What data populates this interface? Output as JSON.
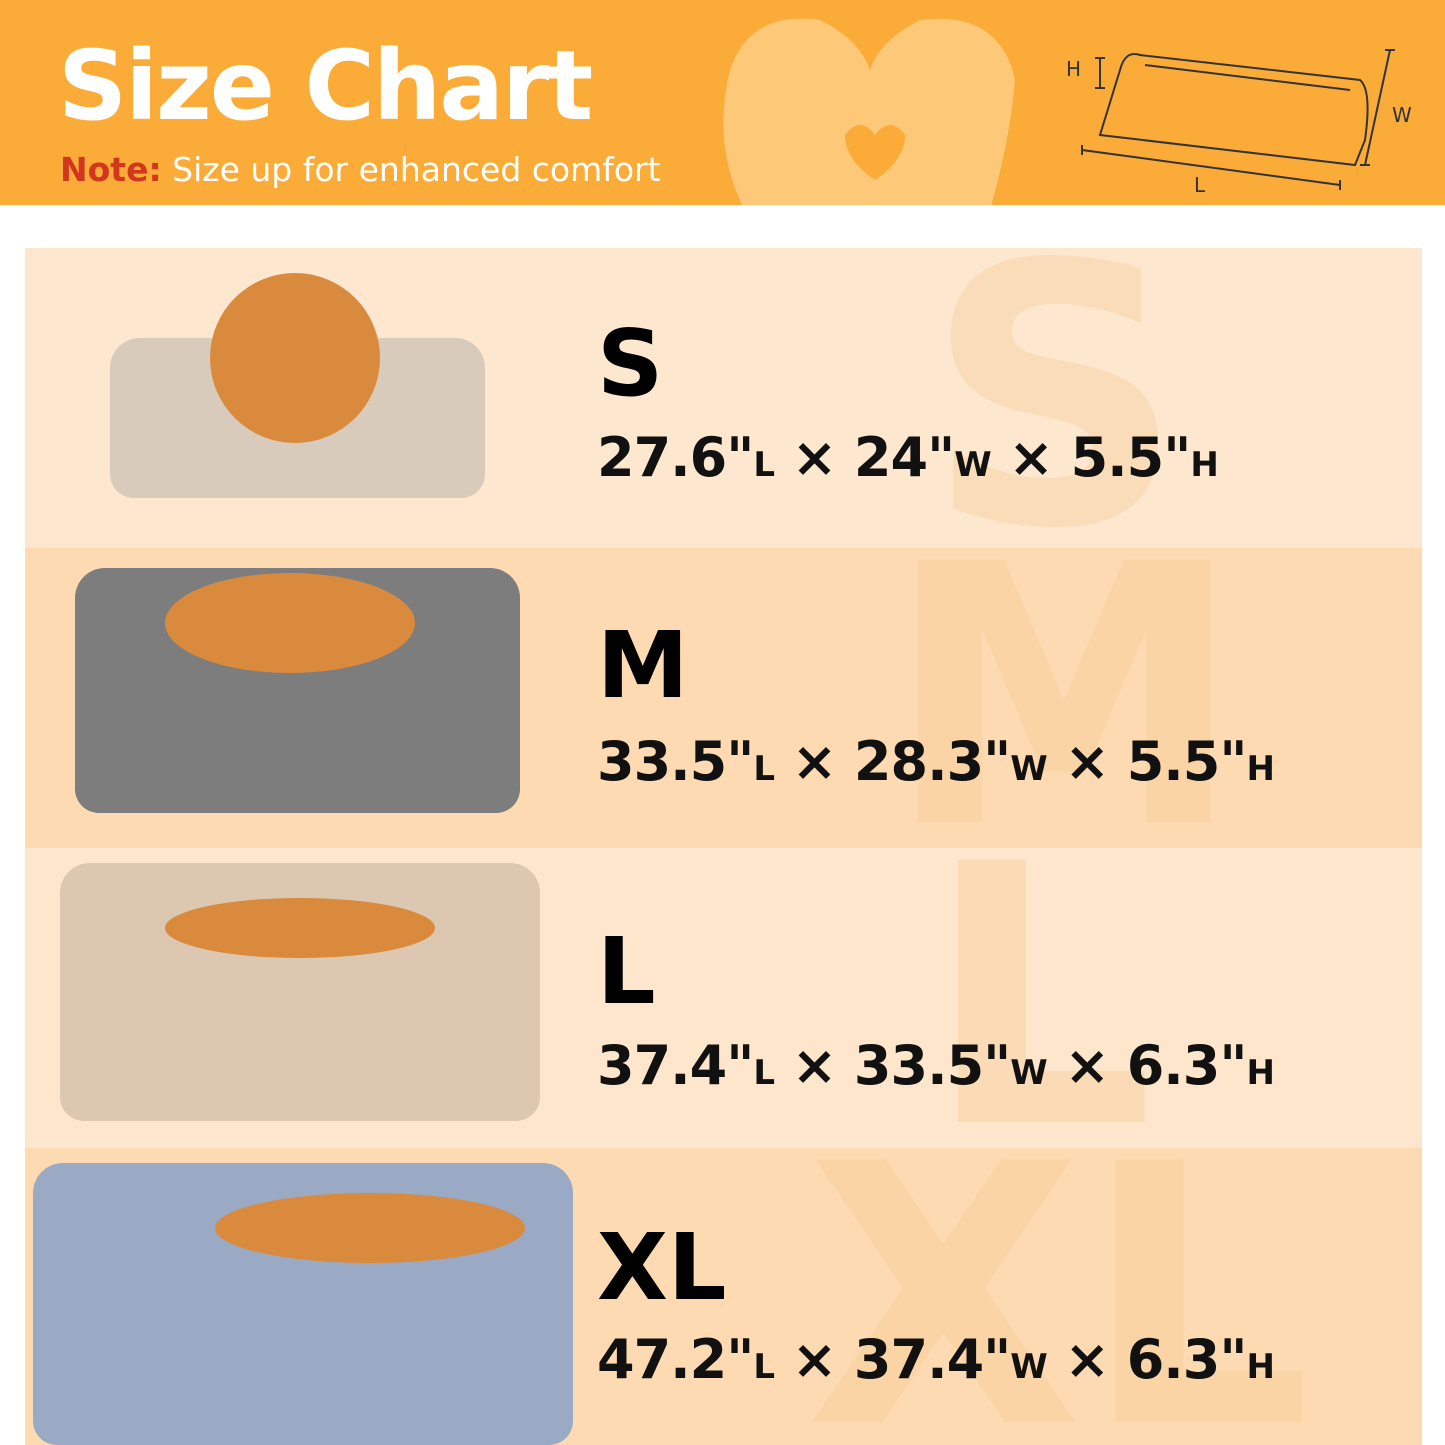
{
  "header": {
    "title": "Size Chart",
    "note_label": "Note:",
    "note_text": "Size up for enhanced comfort",
    "background_color": "#fbab37",
    "note_label_color": "#d2361e"
  },
  "diagram": {
    "h_label": "H",
    "w_label": "W",
    "l_label": "L"
  },
  "sizes": [
    {
      "size": "S",
      "length": "27.6\"",
      "width": "24\"",
      "height": "5.5\"",
      "unit_l": "L",
      "unit_w": "W",
      "unit_h": "H",
      "sep": "×",
      "bed_color": "#d8cbbb",
      "image": "small-beige-bed-with-pomeranian"
    },
    {
      "size": "M",
      "length": "33.5\"",
      "width": "28.3\"",
      "height": "5.5\"",
      "unit_l": "L",
      "unit_w": "W",
      "unit_h": "H",
      "sep": "×",
      "bed_color": "#7d7d7d",
      "image": "medium-grey-bed-with-shiba-inu"
    },
    {
      "size": "L",
      "length": "37.4\"",
      "width": "33.5\"",
      "height": "6.3\"",
      "unit_l": "L",
      "unit_w": "W",
      "unit_h": "H",
      "sep": "×",
      "bed_color": "#dcc8b0",
      "image": "large-beige-bed-with-sleeping-shiba"
    },
    {
      "size": "XL",
      "length": "47.2\"",
      "width": "37.4\"",
      "height": "6.3\"",
      "unit_l": "L",
      "unit_w": "W",
      "unit_h": "H",
      "sep": "×",
      "bed_color": "#9aaac4",
      "image": "xl-blue-tie-dye-bed-with-sleeping-shiba"
    }
  ]
}
